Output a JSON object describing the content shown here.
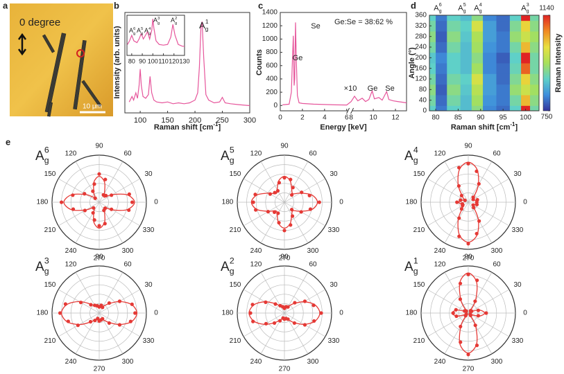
{
  "panel_a": {
    "label": "a",
    "orientation_text": "0 degree",
    "scale_bar": "10 μm"
  },
  "panel_e": "e",
  "chart_data": [
    {
      "type": "line",
      "panel_label": "b",
      "ylabel": "Intensity (arb. units)",
      "xlabel": {
        "text": "Raman shift [cm",
        "sup": "-1",
        "end": "]"
      },
      "x": [
        80,
        85,
        88,
        92,
        95,
        98,
        100,
        102,
        105,
        110,
        115,
        118,
        121,
        125,
        130,
        140,
        150,
        160,
        170,
        180,
        190,
        200,
        205,
        208,
        211,
        213,
        216,
        220,
        225,
        235,
        245,
        250,
        255,
        265,
        280,
        300
      ],
      "values": [
        12,
        18,
        14,
        22,
        16,
        30,
        48,
        30,
        18,
        16,
        20,
        40,
        22,
        14,
        12,
        11,
        12,
        10,
        11,
        10,
        11,
        14,
        22,
        50,
        95,
        100,
        60,
        20,
        14,
        11,
        12,
        17,
        11,
        10,
        9,
        8
      ],
      "color": "#e6559b",
      "xlim": [
        72,
        300
      ],
      "xticks": [
        100,
        150,
        200,
        250,
        300
      ],
      "ylim": [
        0,
        110
      ],
      "annotations": [
        {
          "base": "A",
          "sub": "g",
          "sup": "1"
        }
      ]
    },
    {
      "type": "line",
      "x": [
        76,
        78,
        80,
        82,
        85,
        87,
        89,
        91,
        93,
        95,
        97,
        99,
        100,
        101,
        103,
        106,
        110,
        114,
        117,
        119,
        121,
        124,
        128,
        130
      ],
      "values": [
        30,
        40,
        55,
        40,
        35,
        45,
        60,
        45,
        55,
        65,
        45,
        70,
        100,
        75,
        40,
        30,
        28,
        30,
        50,
        85,
        55,
        30,
        25,
        25
      ],
      "color": "#e6559b",
      "xlim": [
        75.5,
        130
      ],
      "xticks": [
        80,
        90,
        100,
        110,
        120,
        130
      ],
      "ylim": [
        0,
        110
      ],
      "annotations": [
        {
          "base": "A",
          "sub": "g",
          "sup": "6"
        },
        {
          "base": "A",
          "sub": "g",
          "sup": "5"
        },
        {
          "base": "A",
          "sub": "g",
          "sup": "4"
        },
        {
          "base": "A",
          "sub": "g",
          "sup": "3"
        },
        {
          "base": "A",
          "sub": "g",
          "sup": "2"
        }
      ]
    },
    {
      "type": "line",
      "panel_label": "c",
      "xlabel": "Energy [keV]",
      "ylabel": "Counts",
      "x": [
        0.2,
        0.5,
        0.8,
        1.0,
        1.1,
        1.18,
        1.25,
        1.3,
        1.38,
        1.45,
        1.55,
        1.7,
        2,
        3,
        4,
        5,
        6,
        8,
        8.3,
        8.6,
        9,
        9.3,
        9.6,
        9.9,
        10.1,
        10.5,
        10.8,
        11.2,
        11.4,
        11.8,
        12.2,
        12.6,
        13
      ],
      "values": [
        10,
        15,
        20,
        200,
        700,
        1050,
        300,
        400,
        1250,
        700,
        150,
        40,
        30,
        20,
        15,
        10,
        8,
        60,
        140,
        70,
        110,
        60,
        90,
        220,
        100,
        120,
        80,
        210,
        90,
        70,
        60,
        50,
        40
      ],
      "color": "#e6559b",
      "xlim": [
        0,
        13
      ],
      "xbreak": [
        6.3,
        7.9
      ],
      "xticks": [
        0,
        2,
        4,
        6,
        8,
        10,
        12
      ],
      "ylim": [
        -80,
        1400
      ],
      "yticks": [
        0,
        200,
        400,
        600,
        800,
        1000,
        1200,
        1400
      ],
      "annotations": [
        "Ge",
        "Se",
        "×10",
        "Ge",
        "Se"
      ],
      "ratio_text": "Ge:Se = 38:62 %"
    },
    {
      "type": "heatmap",
      "panel_label": "d",
      "ylabel": "Angle (°)",
      "xlabel": {
        "text": "Raman shift [cm",
        "sup": "-1",
        "end": "]"
      },
      "x": [
        79,
        81,
        84,
        87,
        89,
        92,
        95,
        98,
        100,
        102
      ],
      "y": [
        0,
        40,
        80,
        120,
        160,
        200,
        240,
        280,
        320,
        360
      ],
      "z": [
        [
          880,
          800,
          880,
          860,
          920,
          810,
          790,
          880,
          1140,
          900
        ],
        [
          900,
          790,
          900,
          860,
          940,
          820,
          800,
          900,
          1040,
          920
        ],
        [
          920,
          780,
          920,
          870,
          960,
          830,
          800,
          930,
          980,
          940
        ],
        [
          900,
          790,
          900,
          880,
          990,
          830,
          790,
          910,
          1020,
          920
        ],
        [
          880,
          800,
          880,
          860,
          940,
          810,
          790,
          890,
          1100,
          900
        ],
        [
          870,
          810,
          880,
          860,
          920,
          810,
          780,
          880,
          1140,
          900
        ],
        [
          900,
          790,
          900,
          860,
          940,
          820,
          800,
          900,
          1040,
          920
        ],
        [
          920,
          780,
          920,
          870,
          950,
          830,
          800,
          930,
          980,
          940
        ],
        [
          900,
          790,
          900,
          880,
          990,
          830,
          790,
          910,
          1020,
          920
        ],
        [
          880,
          800,
          880,
          860,
          920,
          810,
          790,
          880,
          1140,
          900
        ]
      ],
      "xlim": [
        78.6,
        103
      ],
      "xticks": [
        80,
        85,
        90,
        95,
        100
      ],
      "ylim": [
        0,
        360
      ],
      "yticks": [
        0,
        40,
        80,
        120,
        160,
        200,
        240,
        280,
        320,
        360
      ],
      "colorbar_label": "Raman Intensity",
      "clim": [
        750,
        1140
      ],
      "cticks": [
        750,
        1140
      ],
      "colors": [
        "#34349c",
        "#3f8fdc",
        "#5fd0c8",
        "#a8e05a",
        "#e8e040",
        "#f08a22",
        "#e02424"
      ],
      "annotations": [
        {
          "base": "A",
          "sub": "g",
          "sup": "6"
        },
        {
          "base": "A",
          "sub": "g",
          "sup": "5"
        },
        {
          "base": "A",
          "sub": "g",
          "sup": "4"
        },
        {
          "base": "A",
          "sub": "g",
          "sup": "3"
        }
      ]
    },
    {
      "type": "polar",
      "label": {
        "base": "A",
        "sub": "g",
        "sup": "6"
      },
      "color": "#e53935",
      "rlim": [
        0,
        1
      ],
      "theta": [
        0,
        15,
        30,
        45,
        60,
        75,
        90,
        105,
        120,
        135,
        150,
        165,
        180,
        195,
        210,
        225,
        240,
        255,
        270,
        285,
        300,
        315,
        330,
        345
      ],
      "values": [
        0.7,
        0.66,
        0.3,
        0.2,
        0.18,
        0.5,
        0.6,
        0.4,
        0.27,
        0.12,
        0.36,
        0.58,
        0.8,
        0.57,
        0.35,
        0.17,
        0.26,
        0.39,
        0.5,
        0.47,
        0.2,
        0.18,
        0.3,
        0.65
      ],
      "fit": [
        0.75,
        0.61,
        0.325,
        0.15,
        0.225,
        0.44,
        0.55,
        0.44,
        0.225,
        0.15,
        0.325,
        0.61,
        0.75,
        0.61,
        0.325,
        0.15,
        0.225,
        0.44,
        0.55,
        0.44,
        0.225,
        0.15,
        0.325,
        0.61
      ],
      "angle_ticks": [
        0,
        30,
        60,
        90,
        120,
        150,
        180,
        210,
        240,
        270,
        300,
        330
      ]
    },
    {
      "type": "polar",
      "label": {
        "base": "A",
        "sub": "g",
        "sup": "5"
      },
      "color": "#e53935",
      "rlim": [
        0,
        1
      ],
      "theta": [
        0,
        15,
        30,
        45,
        60,
        75,
        90,
        105,
        120,
        135,
        150,
        165,
        180,
        195,
        210,
        225,
        240,
        255,
        270,
        285,
        300,
        315,
        330,
        345
      ],
      "values": [
        0.74,
        0.55,
        0.42,
        0.22,
        0.36,
        0.5,
        0.52,
        0.43,
        0.28,
        0.29,
        0.35,
        0.64,
        0.66,
        0.63,
        0.4,
        0.3,
        0.27,
        0.45,
        0.6,
        0.5,
        0.34,
        0.22,
        0.41,
        0.57
      ],
      "fit": [
        0.7,
        0.6,
        0.385,
        0.255,
        0.31,
        0.47,
        0.55,
        0.47,
        0.31,
        0.255,
        0.385,
        0.6,
        0.7,
        0.6,
        0.385,
        0.255,
        0.31,
        0.47,
        0.55,
        0.47,
        0.31,
        0.255,
        0.385,
        0.6
      ],
      "angle_ticks": [
        0,
        30,
        60,
        90,
        120,
        150,
        180,
        210,
        240,
        270,
        300,
        330
      ]
    },
    {
      "type": "polar",
      "label": {
        "base": "A",
        "sub": "g",
        "sup": "4"
      },
      "color": "#e53935",
      "rlim": [
        0,
        1
      ],
      "theta": [
        0,
        15,
        30,
        45,
        60,
        75,
        90,
        105,
        120,
        135,
        150,
        165,
        180,
        195,
        210,
        225,
        240,
        255,
        270,
        285,
        300,
        315,
        330,
        345
      ],
      "values": [
        0.18,
        0.2,
        0.12,
        0.15,
        0.45,
        0.68,
        0.82,
        0.76,
        0.4,
        0.2,
        0.08,
        0.17,
        0.24,
        0.13,
        0.14,
        0.2,
        0.39,
        0.75,
        0.88,
        0.69,
        0.46,
        0.16,
        0.12,
        0.19
      ],
      "fit": [
        0.2,
        0.156,
        0.1,
        0.175,
        0.425,
        0.72,
        0.85,
        0.72,
        0.425,
        0.175,
        0.1,
        0.156,
        0.2,
        0.156,
        0.1,
        0.175,
        0.425,
        0.72,
        0.85,
        0.72,
        0.425,
        0.175,
        0.1,
        0.156
      ],
      "angle_ticks": [
        0,
        30,
        60,
        90,
        120,
        150,
        180,
        210,
        240,
        270,
        300,
        330
      ]
    },
    {
      "type": "polar",
      "label": {
        "base": "A",
        "sub": "g",
        "sup": "3"
      },
      "color": "#e53935",
      "rlim": [
        0,
        1
      ],
      "theta": [
        0,
        15,
        30,
        45,
        60,
        75,
        90,
        105,
        120,
        135,
        150,
        165,
        180,
        195,
        210,
        225,
        240,
        255,
        270,
        285,
        300,
        315,
        330,
        345
      ],
      "values": [
        0.76,
        0.72,
        0.5,
        0.3,
        0.14,
        0.17,
        0.13,
        0.16,
        0.19,
        0.25,
        0.45,
        0.74,
        0.83,
        0.68,
        0.52,
        0.26,
        0.18,
        0.12,
        0.17,
        0.15,
        0.14,
        0.3,
        0.5,
        0.69
      ],
      "fit": [
        0.8,
        0.706,
        0.488,
        0.275,
        0.163,
        0.143,
        0.15,
        0.143,
        0.163,
        0.275,
        0.488,
        0.706,
        0.8,
        0.706,
        0.488,
        0.275,
        0.163,
        0.143,
        0.15,
        0.143,
        0.163,
        0.275,
        0.488,
        0.706
      ],
      "angle_ticks": [
        0,
        30,
        60,
        90,
        120,
        150,
        180,
        210,
        240,
        270,
        300,
        330
      ]
    },
    {
      "type": "polar",
      "label": {
        "base": "A",
        "sub": "g",
        "sup": "2"
      },
      "color": "#e53935",
      "rlim": [
        0,
        1
      ],
      "theta": [
        0,
        15,
        30,
        45,
        60,
        75,
        90,
        105,
        120,
        135,
        150,
        165,
        180,
        195,
        210,
        225,
        240,
        255,
        270,
        285,
        300,
        315,
        330,
        345
      ],
      "values": [
        0.78,
        0.64,
        0.5,
        0.31,
        0.15,
        0.14,
        0.1,
        0.14,
        0.18,
        0.27,
        0.46,
        0.7,
        0.72,
        0.69,
        0.45,
        0.3,
        0.19,
        0.11,
        0.13,
        0.12,
        0.15,
        0.3,
        0.5,
        0.65
      ],
      "fit": [
        0.75,
        0.67,
        0.48,
        0.285,
        0.165,
        0.125,
        0.12,
        0.125,
        0.165,
        0.285,
        0.48,
        0.67,
        0.75,
        0.67,
        0.48,
        0.285,
        0.165,
        0.125,
        0.12,
        0.125,
        0.165,
        0.285,
        0.48,
        0.67
      ],
      "angle_ticks": [
        0,
        30,
        60,
        90,
        120,
        150,
        180,
        210,
        240,
        270,
        300,
        330
      ]
    },
    {
      "type": "polar",
      "label": {
        "base": "A",
        "sub": "g",
        "sup": "1"
      },
      "color": "#e53935",
      "rlim": [
        0,
        1
      ],
      "theta": [
        0,
        15,
        30,
        45,
        60,
        75,
        90,
        105,
        120,
        135,
        150,
        165,
        180,
        195,
        210,
        225,
        240,
        255,
        270,
        285,
        300,
        315,
        330,
        345
      ],
      "values": [
        0.38,
        0.22,
        0.08,
        0.07,
        0.29,
        0.72,
        0.82,
        0.65,
        0.34,
        0.06,
        0.09,
        0.27,
        0.32,
        0.26,
        0.05,
        0.08,
        0.33,
        0.64,
        0.88,
        0.71,
        0.3,
        0.07,
        0.05,
        0.22
      ],
      "fit": [
        0.35,
        0.245,
        0.06,
        0.05,
        0.313,
        0.68,
        0.85,
        0.68,
        0.313,
        0.05,
        0.06,
        0.245,
        0.35,
        0.245,
        0.06,
        0.05,
        0.313,
        0.68,
        0.85,
        0.68,
        0.313,
        0.05,
        0.06,
        0.245
      ],
      "angle_ticks": [
        0,
        30,
        60,
        90,
        120,
        150,
        180,
        210,
        240,
        270,
        300,
        330
      ]
    }
  ]
}
